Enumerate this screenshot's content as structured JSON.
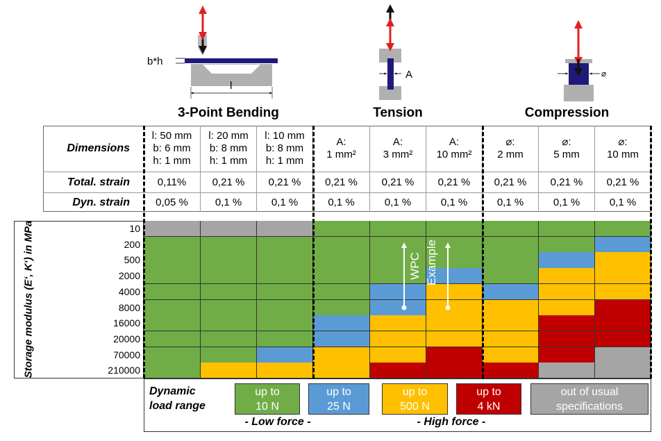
{
  "tests": [
    {
      "title": "3-Point Bending",
      "diagram_labels": [
        "b*h",
        "l"
      ]
    },
    {
      "title": "Tension",
      "diagram_labels": [
        "A"
      ]
    },
    {
      "title": "Compression",
      "diagram_labels": [
        "⌀"
      ]
    }
  ],
  "table": {
    "row_labels": [
      "Dimensions",
      "Total. strain",
      "Dyn. strain"
    ],
    "dimensions": [
      "l: 50 mm\nb: 6 mm\nh: 1 mm",
      "l: 20 mm\nb: 8 mm\nh: 1 mm",
      "l: 10 mm\nb: 8 mm\nh: 1 mm",
      "A:\n1 mm²",
      "A:\n3 mm²",
      "A:\n10 mm²",
      "⌀:\n2 mm",
      "⌀:\n5 mm",
      "⌀:\n10 mm"
    ],
    "total_strain": [
      "0,11%",
      "0,21 %",
      "0,21 %",
      "0,21 %",
      "0,21 %",
      "0,21 %",
      "0,21 %",
      "0,21 %",
      "0,21 %"
    ],
    "dyn_strain": [
      "0,05 %",
      "0,1 %",
      "0,1 %",
      "0,1 %",
      "0,1 %",
      "0,1 %",
      "0,1 %",
      "0,1 %",
      "0,1 %"
    ]
  },
  "grid": {
    "axis_label": "Storage modulus (E‘, K‘) in MPa",
    "moduli": [
      "10",
      "200",
      "500",
      "2000",
      "4000",
      "8000",
      "16000",
      "20000",
      "70000",
      "210000"
    ],
    "cells": [
      [
        "X",
        "X",
        "X",
        "G",
        "G",
        "G",
        "G",
        "G",
        "G"
      ],
      [
        "G",
        "G",
        "G",
        "G",
        "G",
        "G",
        "G",
        "G",
        "B"
      ],
      [
        "G",
        "G",
        "G",
        "G",
        "G",
        "G",
        "G",
        "B",
        "Y"
      ],
      [
        "G",
        "G",
        "G",
        "G",
        "G",
        "B",
        "G",
        "Y",
        "Y"
      ],
      [
        "G",
        "G",
        "G",
        "G",
        "B",
        "Y",
        "B",
        "Y",
        "Y"
      ],
      [
        "G",
        "G",
        "G",
        "G",
        "B",
        "Y",
        "Y",
        "Y",
        "R"
      ],
      [
        "G",
        "G",
        "G",
        "B",
        "Y",
        "Y",
        "Y",
        "R",
        "R"
      ],
      [
        "G",
        "G",
        "G",
        "B",
        "Y",
        "Y",
        "Y",
        "R",
        "R"
      ],
      [
        "G",
        "G",
        "B",
        "Y",
        "Y",
        "R",
        "Y",
        "R",
        "X"
      ],
      [
        "G",
        "Y",
        "Y",
        "Y",
        "R",
        "R",
        "R",
        "X",
        "X"
      ]
    ],
    "annotations": [
      "WPC",
      "Example"
    ]
  },
  "legend": {
    "title": "Dynamic\nload range",
    "items": [
      {
        "code": "G",
        "label": "up to\n10 N"
      },
      {
        "code": "B",
        "label": "up to\n25 N"
      },
      {
        "code": "Y",
        "label": "up to\n500 N"
      },
      {
        "code": "R",
        "label": "up to\n4 kN"
      },
      {
        "code": "X",
        "label": "out of usual\nspecifications"
      }
    ],
    "groups": [
      "- Low force -",
      "- High force -"
    ]
  },
  "colors": {
    "G": "#70ad47",
    "B": "#5b9bd5",
    "Y": "#ffc000",
    "R": "#c00000",
    "X": "#a5a5a5",
    "specimen": "#1f1a7a",
    "arrow": "#e02020"
  }
}
